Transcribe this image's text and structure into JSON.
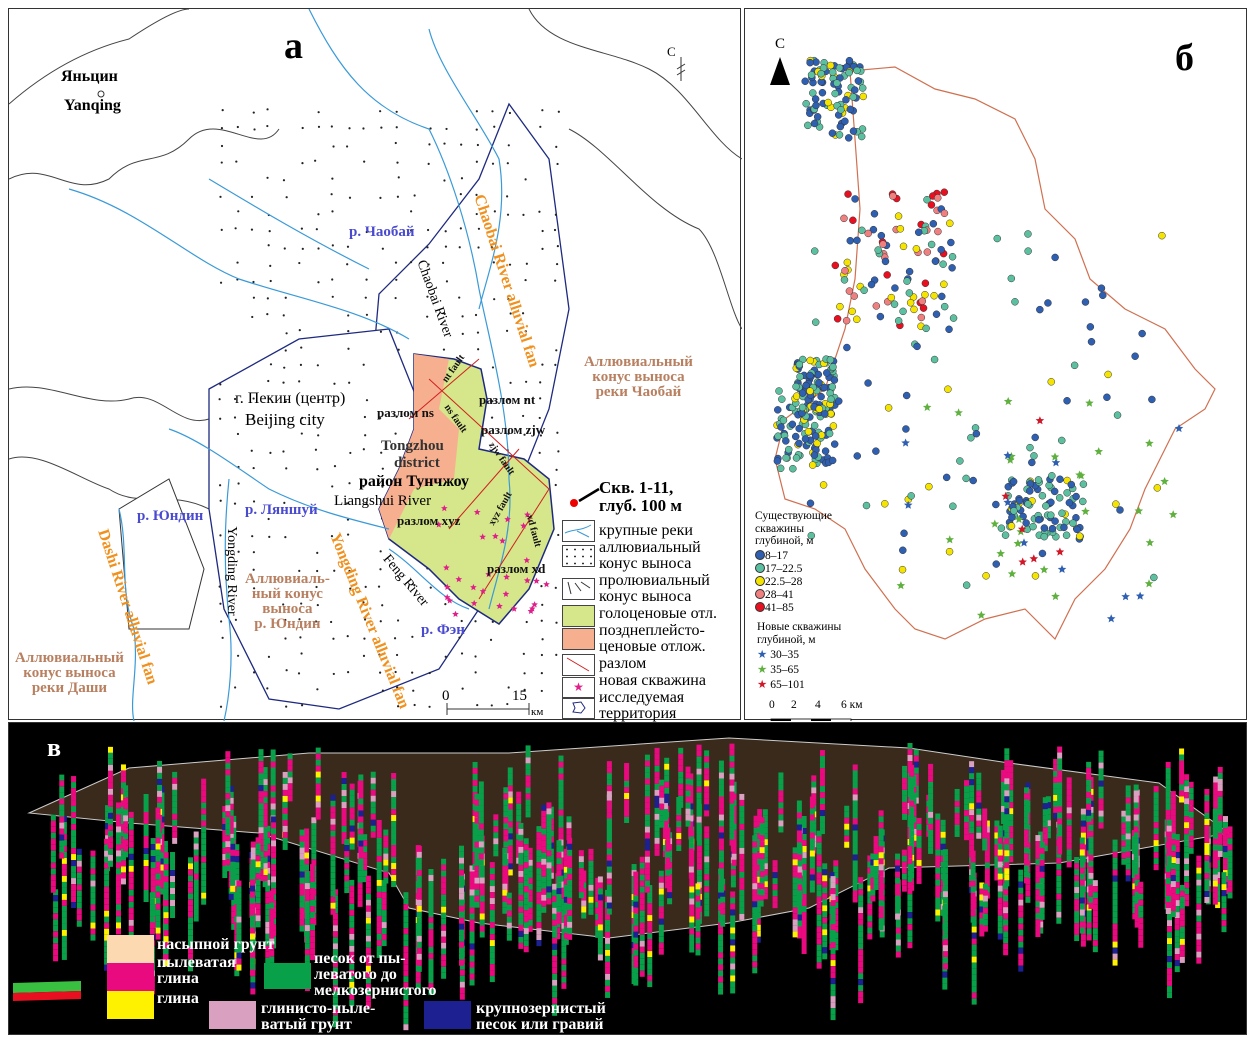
{
  "panel_a": {
    "label": "а",
    "north": "С",
    "cities": {
      "yanqing_ru": "Яньцин",
      "yanqing_en": "Yanqing",
      "beijing_ru": "г. Пекин (центр)",
      "beijing_en": "Beijing city",
      "tongzhou_en_1": "Tongzhou",
      "tongzhou_en_2": "district",
      "tongzhou_ru": "район Тунчжоу"
    },
    "rivers": {
      "chaobai_ru": "р. Чаобай",
      "chaobai_en": "Chaobai River",
      "yongding_ru": "р. Юндин",
      "yongding_en": "Yongding River",
      "liangshui_ru": "р. Ляншуй",
      "liangshui_en": "Liangshui River",
      "feng_ru": "р. Фэн",
      "feng_en": "Feng River"
    },
    "fans": {
      "chaobai_en": "Chaobai River alluvial fan",
      "chaobai_ru": [
        "Аллювиальный",
        "конус выноса",
        "реки Чаобай"
      ],
      "yongding_en": "Yongding River alluvial fan",
      "yongding_ru": [
        "Аллювиаль-",
        "ный конус",
        "выноса",
        "р. Юндин"
      ],
      "dashi_en": "Dashi River alluvial fan",
      "dashi_ru": [
        "Аллювиальный",
        "конус выноса",
        "реки Даши"
      ]
    },
    "faults": {
      "ns": "разлом ns",
      "nt": "разлом nt",
      "zjw": "разлом zjw",
      "xyz": "разлом xyz",
      "xd": "разлом xd",
      "nt_en": "nt fault",
      "ns_en": "ns fault",
      "zjw_en": "zjw fault",
      "xyz_en": "xyz fault",
      "xd_en": "xd fault"
    },
    "well_note": [
      "Скв. 1-11,",
      "глуб. 100 м"
    ],
    "scale": {
      "zero": "0",
      "max": "15",
      "unit": "км"
    },
    "legend": [
      {
        "label": "крупные реки",
        "icon": "river-icon"
      },
      {
        "label": "аллювиальный конус выноса",
        "icon": "dots-pattern",
        "lines": [
          "аллювиальный",
          "конус выноса"
        ]
      },
      {
        "label": "пролювиальный конус выноса",
        "icon": "dash-pattern",
        "lines": [
          "пролювиальный",
          "конус выноса"
        ]
      },
      {
        "label": "голоценовые отл.",
        "color": "#d6e68a"
      },
      {
        "label": "позднеплейстоценовые отлож.",
        "color": "#f7b08f",
        "lines": [
          "позднеплейсто-",
          "ценовые отлож."
        ]
      },
      {
        "label": "разлом",
        "icon": "fault-line-icon"
      },
      {
        "label": "новая скважина",
        "icon": "star-icon"
      },
      {
        "label": "исследуемая территория",
        "icon": "outline-icon",
        "lines": [
          "исследуемая",
          "территория"
        ]
      }
    ]
  },
  "panel_b": {
    "label": "б",
    "north": "С",
    "existing_title": [
      "Существующие",
      "скважины",
      "глубиной, м"
    ],
    "existing": [
      {
        "range": "8–17",
        "color": "#2f5fb0"
      },
      {
        "range": "17–22.5",
        "color": "#5cc0a0"
      },
      {
        "range": "22.5–28",
        "color": "#f4e400"
      },
      {
        "range": "28–41",
        "color": "#f08080"
      },
      {
        "range": "41–85",
        "color": "#e81020"
      }
    ],
    "new_title": [
      "Новые скважины",
      "глубиной, м"
    ],
    "new": [
      {
        "range": "30–35",
        "color": "#2f5fb0"
      },
      {
        "range": "35–65",
        "color": "#60b040"
      },
      {
        "range": "65–101",
        "color": "#d01828"
      }
    ],
    "scale": [
      "0",
      "2",
      "4",
      "6 км"
    ],
    "boundary_color": "#d07050"
  },
  "panel_c": {
    "label": "в",
    "legend": [
      {
        "label": "насыпной грунт",
        "color": "#fcd9b0"
      },
      {
        "label": "пылеватая глина",
        "color": "#ea0a80",
        "lines": [
          "пылеватая",
          "глина"
        ]
      },
      {
        "label": "глина",
        "color": "#fff200"
      },
      {
        "label": "песок от пылеватого до мелкозернистого",
        "color": "#09a04a",
        "lines": [
          "песок от пы-",
          "леватого до",
          "мелкозернистого"
        ]
      },
      {
        "label": "глинисто-пылеватый грунт",
        "color": "#d9a0c0",
        "lines": [
          "глинисто-пыле-",
          "ватый грунт"
        ]
      },
      {
        "label": "крупнозернистый песок или гравий",
        "color": "#1c2090",
        "lines": [
          "крупнозернистый",
          "песок или гравий"
        ]
      }
    ]
  }
}
